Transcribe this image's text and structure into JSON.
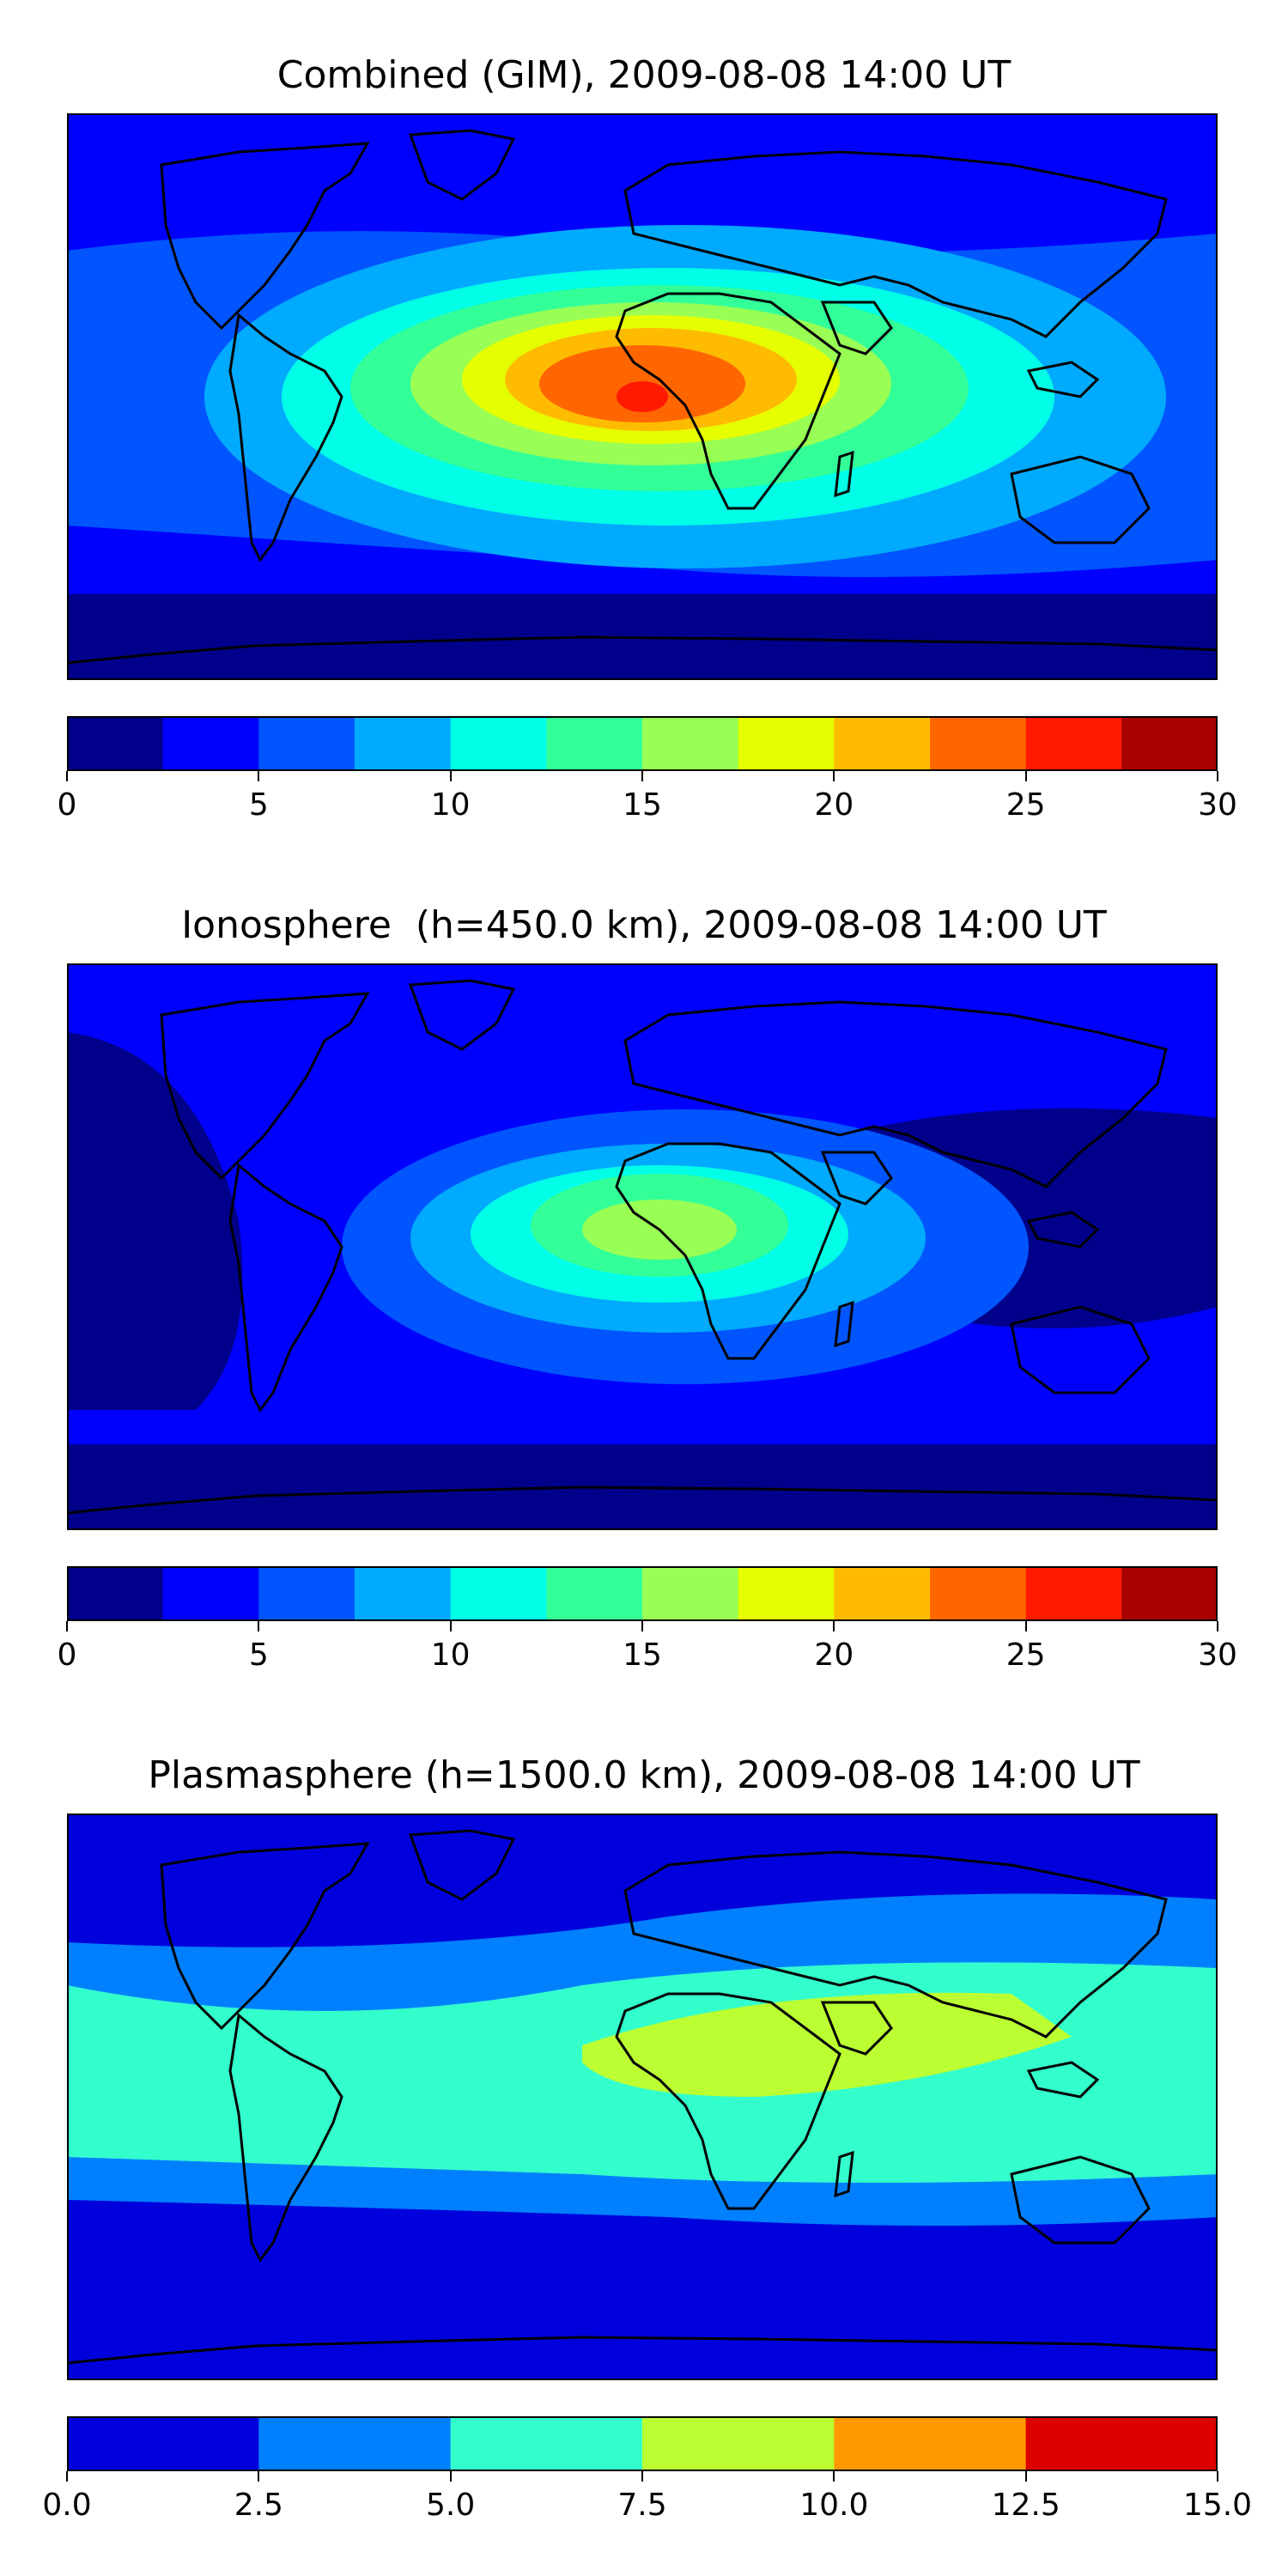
{
  "panels": [
    {
      "title": "Combined (GIM), 2009-08-08 14:00 UT",
      "colorbar": {
        "colors": [
          "#00008b",
          "#0000ff",
          "#0055ff",
          "#00aaff",
          "#00ffe6",
          "#33ff99",
          "#99ff55",
          "#e6ff00",
          "#ffbb00",
          "#ff6600",
          "#ff1a00",
          "#a80000"
        ],
        "ticks": [
          "0",
          "5",
          "10",
          "15",
          "20",
          "25",
          "30"
        ]
      }
    },
    {
      "title": "Ionosphere  (h=450.0 km), 2009-08-08 14:00 UT",
      "colorbar": {
        "colors": [
          "#00008b",
          "#0000ff",
          "#0055ff",
          "#00aaff",
          "#00ffe6",
          "#33ff99",
          "#99ff55",
          "#e6ff00",
          "#ffbb00",
          "#ff6600",
          "#ff1a00",
          "#a80000"
        ],
        "ticks": [
          "0",
          "5",
          "10",
          "15",
          "20",
          "25",
          "30"
        ]
      }
    },
    {
      "title": "Plasmasphere (h=1500.0 km), 2009-08-08 14:00 UT",
      "colorbar": {
        "colors": [
          "#0000dd",
          "#0080ff",
          "#33ffcc",
          "#bbff33",
          "#ff9900",
          "#dd0000"
        ],
        "ticks": [
          "0.0",
          "2.5",
          "5.0",
          "7.5",
          "10.0",
          "12.5",
          "15.0"
        ]
      }
    }
  ]
}
